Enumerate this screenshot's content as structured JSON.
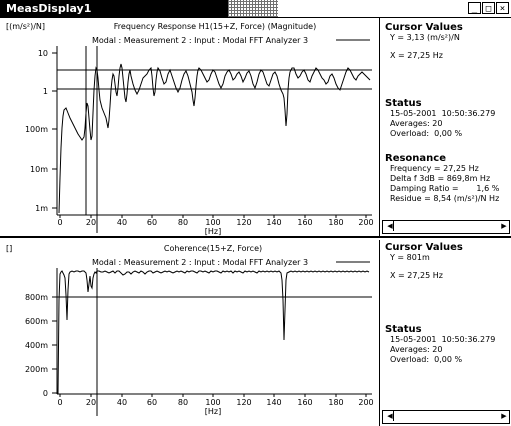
{
  "window": {
    "title": "MeasDisplay1",
    "buttons": [
      "_",
      "□",
      "×"
    ]
  },
  "pane1": {
    "y_unit": "[(m/s²)/N]",
    "title_line1": "Frequency Response H1(15+Z, Force) (Magnitude)",
    "title_line2": "Modal : Measurement 2 : Input : Modal FFT Analyzer 3",
    "x_unit": "[Hz]",
    "y_ticks": [
      "10",
      "1",
      "100m",
      "10m",
      "1m"
    ],
    "x_ticks": [
      "0",
      "20",
      "40",
      "60",
      "80",
      "100",
      "120",
      "140",
      "160",
      "180",
      "200"
    ],
    "cursor": {
      "heading": "Cursor Values",
      "y": "Y = 3,13 (m/s²)/N",
      "x": "X = 27,25 Hz"
    },
    "status": {
      "heading": "Status",
      "line1": "15-05-2001  10:50:36.279",
      "line2": "Averages: 20",
      "line3": "Overload:  0,00 %"
    },
    "resonance": {
      "heading": "Resonance",
      "line1": "Frequency = 27,25 Hz",
      "line2": "Delta f 3dB = 869,8m Hz",
      "line3": "Damping Ratio =       1,6 %",
      "line4": "Residue = 8,54 (m/s²)/N Hz"
    }
  },
  "pane2": {
    "y_unit": "[]",
    "title_line1": "Coherence(15+Z, Force)",
    "title_line2": "Modal : Measurement 2 : Input : Modal FFT Analyzer 3",
    "x_unit": "[Hz]",
    "y_ticks": [
      "800m",
      "600m",
      "400m",
      "200m",
      "0"
    ],
    "x_ticks": [
      "0",
      "20",
      "40",
      "60",
      "80",
      "100",
      "120",
      "140",
      "160",
      "180",
      "200"
    ],
    "cursor": {
      "heading": "Cursor Values",
      "y": "Y = 801m",
      "x": "X = 27,25 Hz"
    },
    "status": {
      "heading": "Status",
      "line1": "15-05-2001  10:50:36.279",
      "line2": "Averages: 20",
      "line3": "Overload:  0,00 %"
    }
  }
}
